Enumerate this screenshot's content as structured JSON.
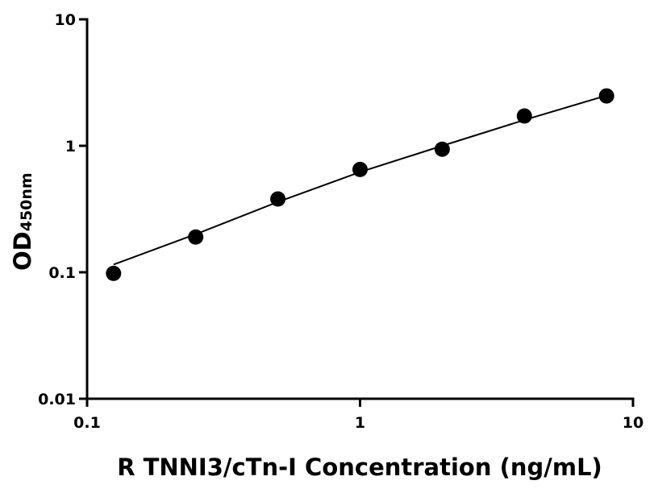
{
  "chart_data": {
    "type": "scatter",
    "x_label": "R TNNI3/cTn-I Concentration (ng/mL)",
    "y_label": "OD",
    "y_label_subscript": "450nm",
    "x_log": true,
    "y_log": true,
    "xlim": [
      0.1,
      10
    ],
    "ylim": [
      0.01,
      10
    ],
    "xticks": [
      0.1,
      1,
      10
    ],
    "yticks": [
      0.01,
      0.1,
      1,
      10
    ],
    "series": [
      {
        "color": "#000000",
        "x": [
          0.125,
          0.25,
          0.5,
          1,
          2,
          4,
          8
        ],
        "values": [
          0.098,
          0.19,
          0.38,
          0.65,
          0.94,
          1.72,
          2.48
        ]
      }
    ],
    "curve": {
      "color": "#000000",
      "x": [
        0.125,
        0.25,
        0.5,
        1,
        2,
        4,
        8
      ],
      "values": [
        0.115,
        0.2,
        0.36,
        0.62,
        1.0,
        1.6,
        2.5
      ]
    }
  }
}
